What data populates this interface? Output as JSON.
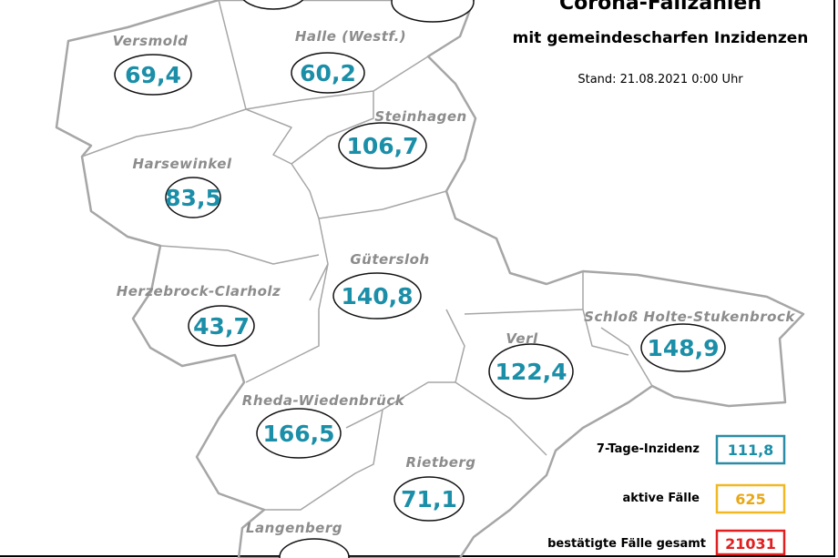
{
  "header": {
    "title": "Corona-Fallzahlen",
    "subtitle": "mit gemeindescharfen Inzidenzen",
    "date": "Stand: 21.08.2021 0:00 Uhr"
  },
  "regions": [
    {
      "name": "Versmold",
      "incidence": "69,4"
    },
    {
      "name": "Halle (Westf.)",
      "incidence": "60,2"
    },
    {
      "name": "Steinhagen",
      "incidence": "106,7"
    },
    {
      "name": "Harsewinkel",
      "incidence": "83,5"
    },
    {
      "name": "Gütersloh",
      "incidence": "140,8"
    },
    {
      "name": "Herzebrock-Clarholz",
      "incidence": "43,7"
    },
    {
      "name": "Verl",
      "incidence": "122,4"
    },
    {
      "name": "Schloß Holte-Stukenbrock",
      "incidence": "148,9"
    },
    {
      "name": "Rheda-Wiedenbrück",
      "incidence": "166,5"
    },
    {
      "name": "Rietberg",
      "incidence": "71,1"
    },
    {
      "name": "Langenberg"
    }
  ],
  "legend": [
    {
      "label": "7-Tage-Inzidenz",
      "value": "111,8"
    },
    {
      "label": "aktive Fälle",
      "value": "625"
    },
    {
      "label": "bestätigte Fälle gesamt",
      "value": "21031"
    }
  ]
}
